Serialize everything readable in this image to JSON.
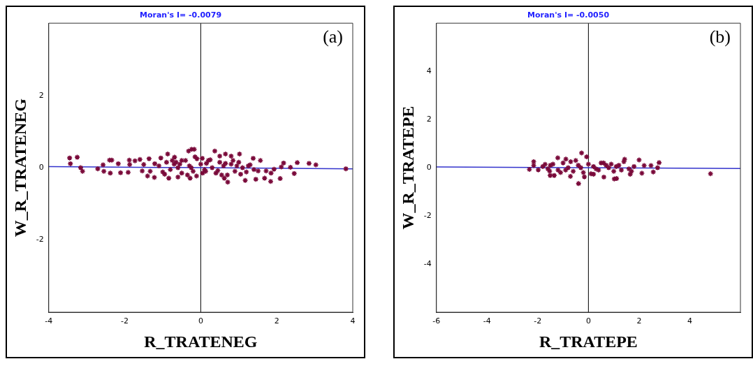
{
  "chart_data": [
    {
      "type": "scatter",
      "title": "Moran's I= -0.0079",
      "xlabel": "R_TRATENEG",
      "ylabel": "W_R_TRATENEG",
      "annotations": [
        "(a)"
      ],
      "xlim": [
        -4,
        4
      ],
      "ylim": [
        -4,
        4
      ],
      "xticks": [
        -4,
        -2,
        0,
        2,
        4
      ],
      "yticks": [
        -2,
        0,
        2
      ],
      "grid": false,
      "legend": false,
      "marker": "cross",
      "ref_lines": [
        {
          "axis": "x",
          "value": 0,
          "color": "#000000"
        }
      ],
      "series": [
        {
          "color": "#7a0a3a",
          "x": [
            -3.45,
            -3.25,
            -3.43,
            -3.16,
            -3.11,
            -2.71,
            -2.57,
            -2.55,
            -2.4,
            -2.34,
            -2.38,
            -2.17,
            -2.11,
            -1.88,
            -1.87,
            -1.91,
            -1.73,
            -1.6,
            -1.54,
            -1.5,
            -1.36,
            -1.33,
            -1.4,
            -1.21,
            -1.22,
            -1.05,
            -0.87,
            -0.84,
            -0.69,
            -0.6,
            -0.5,
            -0.32,
            -0.24,
            -0.17,
            -0.28,
            -0.11,
            0.04,
            0.13,
            0.37,
            0.5,
            0.65,
            0.8,
            1.02,
            0.71,
            0.62,
            1.17,
            1.38,
            1.45,
            1.57,
            1.51,
            1.72,
            1.68,
            1.84,
            1.85,
            1.93,
            2.12,
            2.09,
            2.18,
            2.36,
            2.46,
            2.54,
            2.85,
            3.03,
            3.82,
            -1.1,
            -1.0,
            -0.9,
            -0.8,
            -0.7,
            -0.6,
            -0.5,
            -0.4,
            -0.3,
            -0.2,
            -0.1,
            0.0,
            0.1,
            0.2,
            0.3,
            0.4,
            0.5,
            0.6,
            0.7,
            0.8,
            0.9,
            1.0,
            1.1,
            1.2,
            1.3,
            1.4,
            -0.95,
            -0.75,
            -0.55,
            -0.35,
            -0.15,
            0.05,
            0.25,
            0.45,
            0.65,
            0.85,
            1.05,
            1.25,
            -0.65,
            -0.25,
            0.15,
            0.55,
            0.95
          ],
          "values": [
            0.27,
            0.29,
            0.11,
            0.0,
            -0.1,
            -0.03,
            0.08,
            -0.1,
            0.21,
            0.21,
            -0.15,
            0.11,
            -0.14,
            0.21,
            0.09,
            -0.13,
            0.19,
            0.23,
            -0.09,
            0.09,
            0.25,
            -0.1,
            -0.23,
            0.11,
            -0.27,
            0.27,
            0.38,
            -0.29,
            0.29,
            -0.26,
            0.2,
            0.46,
            0.51,
            0.51,
            -0.29,
            -0.23,
            0.26,
            -0.1,
            0.46,
            0.32,
            0.38,
            0.32,
            0.38,
            -0.4,
            -0.29,
            -0.35,
            0.26,
            -0.32,
            0.2,
            -0.09,
            -0.09,
            -0.29,
            -0.38,
            -0.15,
            -0.04,
            0.02,
            -0.3,
            0.13,
            0.01,
            -0.16,
            0.14,
            0.12,
            0.08,
            -0.03,
            0.05,
            -0.12,
            0.15,
            -0.05,
            0.1,
            0.0,
            -0.15,
            0.2,
            0.05,
            -0.1,
            0.25,
            0.1,
            -0.05,
            0.2,
            0.0,
            -0.15,
            0.15,
            0.05,
            -0.2,
            0.1,
            -0.1,
            0.15,
            0.0,
            -0.12,
            0.08,
            -0.05,
            -0.18,
            0.2,
            0.1,
            -0.2,
            0.3,
            -0.15,
            0.22,
            -0.08,
            0.12,
            0.2,
            -0.18,
            0.05,
            0.15,
            0.0,
            0.12,
            -0.2,
            0.05
          ]
        },
        {
          "type": "line",
          "color": "#3333cc",
          "x": [
            -4,
            4
          ],
          "values": [
            0.03,
            -0.03
          ],
          "marker": "none",
          "line_style": "solid"
        }
      ]
    },
    {
      "type": "scatter",
      "title": "Moran's I= -0.0050",
      "xlabel": "R_TRATEPE",
      "ylabel": "W_R_TRATEPE",
      "annotations": [
        "(b)"
      ],
      "xlim": [
        -6,
        6
      ],
      "ylim": [
        -6,
        6
      ],
      "xticks": [
        -6,
        -4,
        -2,
        0,
        2,
        4
      ],
      "yticks": [
        -4,
        -2,
        0,
        2,
        4
      ],
      "grid": false,
      "legend": false,
      "marker": "cross",
      "ref_lines": [
        {
          "axis": "x",
          "value": 0,
          "color": "#000000"
        }
      ],
      "series": [
        {
          "color": "#7a0a3a",
          "x": [
            -0.39,
            -0.27,
            4.82,
            2.79,
            2.73,
            2.56,
            2.47,
            2.0,
            2.11,
            1.43,
            1.11,
            1.02,
            0.61,
            -0.07,
            -2.16,
            -2.16,
            -2.33,
            -1.98,
            -1.51,
            -1.53,
            -1.21,
            -0.89,
            -0.71,
            -0.16,
            0.2,
            1.65,
            2.2,
            -1.71,
            -1.35,
            -1.8,
            -1.6,
            -1.4,
            -1.2,
            -1.0,
            -0.8,
            -0.6,
            -0.4,
            -0.2,
            0.0,
            0.2,
            0.4,
            0.6,
            0.8,
            1.0,
            1.2,
            1.4,
            1.6,
            1.8,
            -1.5,
            -1.1,
            -0.7,
            -0.3,
            0.1,
            0.5,
            0.9,
            1.3,
            1.7,
            -0.9,
            -0.5,
            0.3,
            0.7,
            1.1
          ],
          "values": [
            -0.66,
            0.61,
            -0.25,
            0.21,
            0.0,
            -0.18,
            0.09,
            0.32,
            -0.23,
            0.35,
            -0.45,
            -0.47,
            -0.39,
            0.45,
            0.25,
            0.09,
            -0.07,
            -0.09,
            -0.32,
            -0.14,
            0.41,
            0.36,
            -0.36,
            -0.38,
            -0.27,
            -0.27,
            0.09,
            0.14,
            -0.32,
            0.05,
            -0.05,
            0.15,
            -0.1,
            0.2,
            0.0,
            -0.15,
            0.1,
            -0.2,
            0.15,
            0.05,
            -0.1,
            0.2,
            0.0,
            -0.15,
            0.1,
            0.25,
            -0.05,
            0.05,
            0.1,
            -0.2,
            0.25,
            0.0,
            -0.25,
            0.2,
            0.15,
            -0.1,
            -0.15,
            -0.1,
            0.3,
            -0.05,
            0.1,
            0.05
          ]
        },
        {
          "type": "line",
          "color": "#3333cc",
          "x": [
            -6,
            6
          ],
          "values": [
            0.03,
            -0.03
          ],
          "marker": "none",
          "line_style": "solid"
        }
      ]
    }
  ]
}
